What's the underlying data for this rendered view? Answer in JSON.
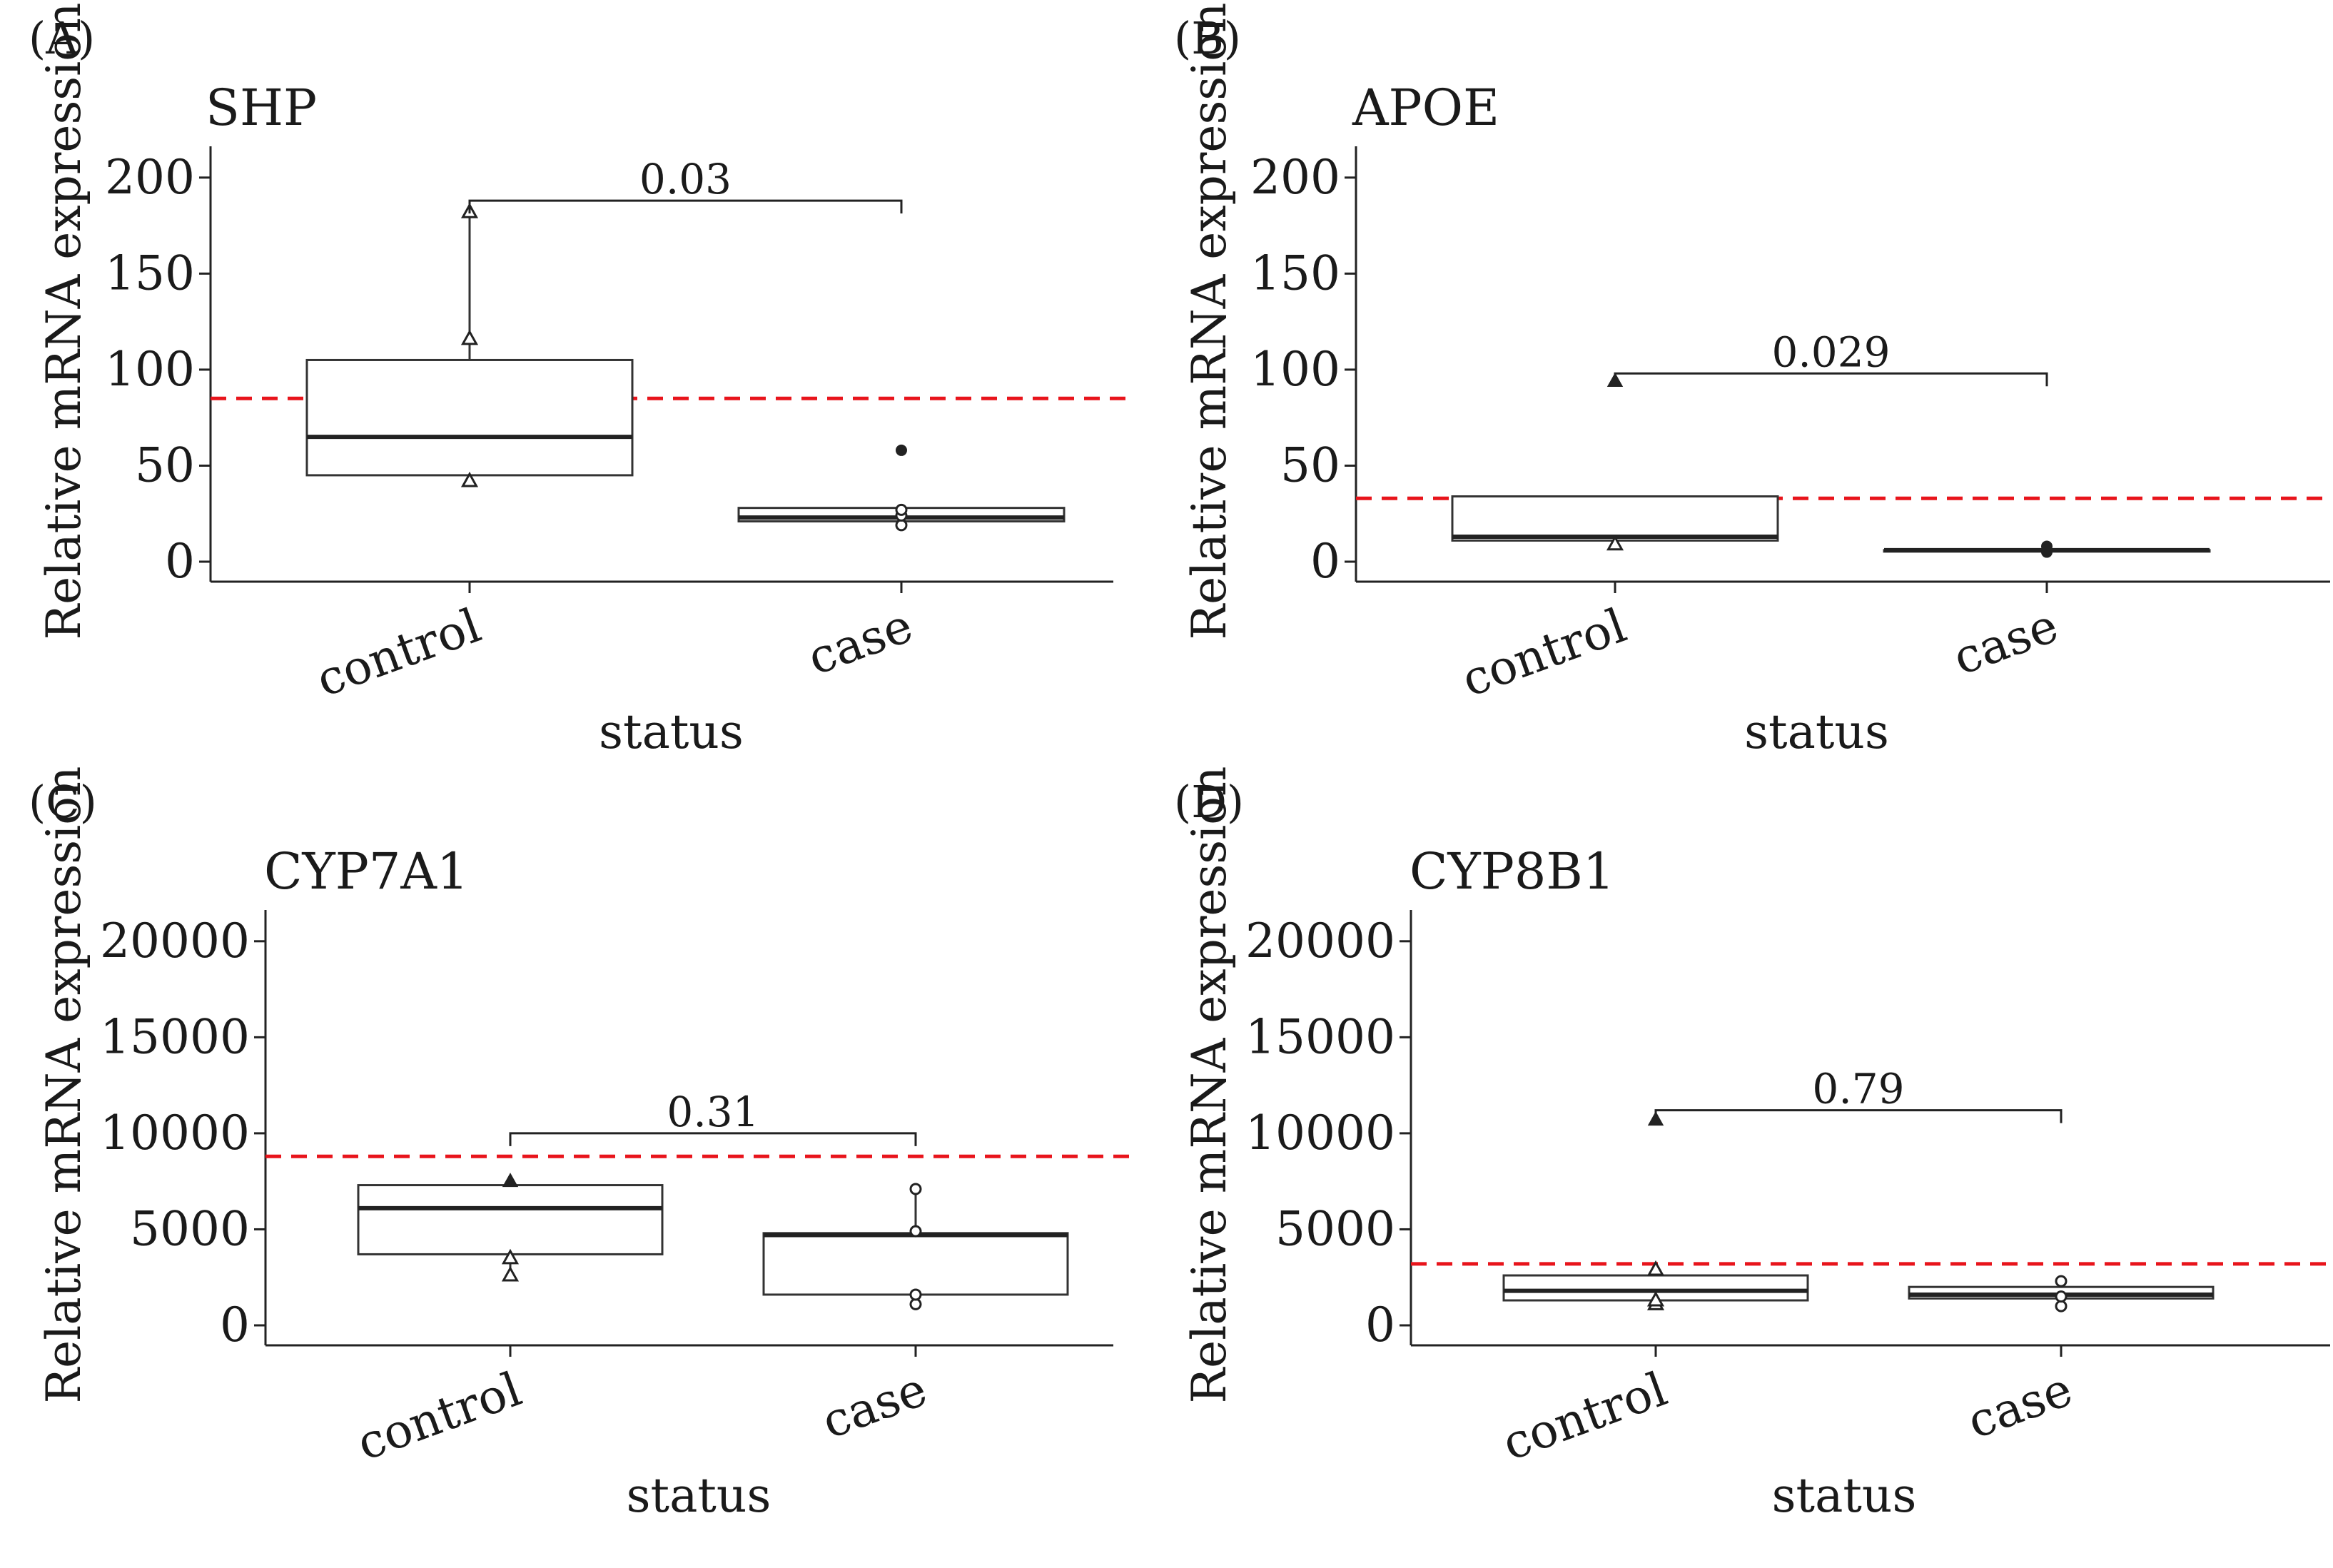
{
  "chart_data": [
    {
      "panel": "(A)",
      "type": "box",
      "title": "SHP",
      "xlabel": "status",
      "ylabel": "Relative mRNA expression",
      "ylim": [
        0,
        220
      ],
      "yticks": [
        0,
        50,
        100,
        150,
        200
      ],
      "categories": [
        "control",
        "case"
      ],
      "boxes": [
        {
          "category": "control",
          "q1": 45,
          "median": 65,
          "q3": 105,
          "whisker_low": 45,
          "whisker_high": 182,
          "points": [
            {
              "y": 42,
              "shape": "triangle-open"
            },
            {
              "y": 116,
              "shape": "triangle-open"
            },
            {
              "y": 182,
              "shape": "triangle-open"
            }
          ]
        },
        {
          "category": "case",
          "q1": 21,
          "median": 23,
          "q3": 28,
          "whisker_low": 21,
          "whisker_high": 28,
          "points": [
            {
              "y": 19,
              "shape": "circle-open"
            },
            {
              "y": 24,
              "shape": "circle-open"
            },
            {
              "y": 27,
              "shape": "circle-open"
            },
            {
              "y": 58,
              "shape": "circle-filled"
            }
          ]
        }
      ],
      "reference_line": 85,
      "pvalue": {
        "label": "0.03",
        "y": 188
      }
    },
    {
      "panel": "(B)",
      "type": "box",
      "title": "APOE",
      "xlabel": "status",
      "ylabel": "Relative mRNA expression",
      "ylim": [
        0,
        220
      ],
      "yticks": [
        0,
        50,
        100,
        150,
        200
      ],
      "categories": [
        "control",
        "case"
      ],
      "boxes": [
        {
          "category": "control",
          "q1": 11,
          "median": 13,
          "q3": 34,
          "whisker_low": 11,
          "whisker_high": 34,
          "points": [
            {
              "y": 9,
              "shape": "triangle-open"
            },
            {
              "y": 94,
              "shape": "triangle-filled"
            }
          ]
        },
        {
          "category": "case",
          "q1": 6,
          "median": 6,
          "q3": 6,
          "whisker_low": 6,
          "whisker_high": 6,
          "points": [
            {
              "y": 5,
              "shape": "circle-filled"
            },
            {
              "y": 8,
              "shape": "circle-filled"
            }
          ]
        }
      ],
      "reference_line": 33,
      "pvalue": {
        "label": "0.029",
        "y": 98
      }
    },
    {
      "panel": "(C)",
      "type": "box",
      "title": "CYP7A1",
      "xlabel": "status",
      "ylabel": "Relative mRNA expression",
      "ylim": [
        0,
        22000
      ],
      "yticks": [
        0,
        5000,
        10000,
        15000,
        20000
      ],
      "categories": [
        "control",
        "case"
      ],
      "boxes": [
        {
          "category": "control",
          "q1": 3700,
          "median": 6100,
          "q3": 7300,
          "whisker_low": 2600,
          "whisker_high": 7500,
          "points": [
            {
              "y": 2600,
              "shape": "triangle-open"
            },
            {
              "y": 3500,
              "shape": "triangle-open"
            },
            {
              "y": 7500,
              "shape": "triangle-filled"
            }
          ]
        },
        {
          "category": "case",
          "q1": 1600,
          "median": 4700,
          "q3": 4800,
          "whisker_low": 1100,
          "whisker_high": 7100,
          "points": [
            {
              "y": 1100,
              "shape": "circle-open"
            },
            {
              "y": 1600,
              "shape": "circle-open"
            },
            {
              "y": 4900,
              "shape": "circle-open"
            },
            {
              "y": 7100,
              "shape": "circle-open"
            }
          ]
        }
      ],
      "reference_line": 8800,
      "pvalue": {
        "label": "0.31",
        "y": 10000
      }
    },
    {
      "panel": "(D)",
      "type": "box",
      "title": "CYP8B1",
      "xlabel": "status",
      "ylabel": "Relative mRNA expression",
      "ylim": [
        0,
        22000
      ],
      "yticks": [
        0,
        5000,
        10000,
        15000,
        20000
      ],
      "categories": [
        "control",
        "case"
      ],
      "boxes": [
        {
          "category": "control",
          "q1": 1300,
          "median": 1800,
          "q3": 2600,
          "whisker_low": 1100,
          "whisker_high": 3000,
          "points": [
            {
              "y": 1100,
              "shape": "triangle-open"
            },
            {
              "y": 1300,
              "shape": "triangle-open"
            },
            {
              "y": 2900,
              "shape": "triangle-open"
            },
            {
              "y": 10700,
              "shape": "triangle-filled"
            }
          ]
        },
        {
          "category": "case",
          "q1": 1400,
          "median": 1600,
          "q3": 2000,
          "whisker_low": 1000,
          "whisker_high": 2300,
          "points": [
            {
              "y": 1000,
              "shape": "circle-open"
            },
            {
              "y": 1500,
              "shape": "circle-open"
            },
            {
              "y": 2300,
              "shape": "circle-open"
            }
          ]
        }
      ],
      "reference_line": 3200,
      "pvalue": {
        "label": "0.79",
        "y": 11200
      }
    }
  ],
  "colors": {
    "reference_line": "#e8141b",
    "ink": "#222222"
  }
}
